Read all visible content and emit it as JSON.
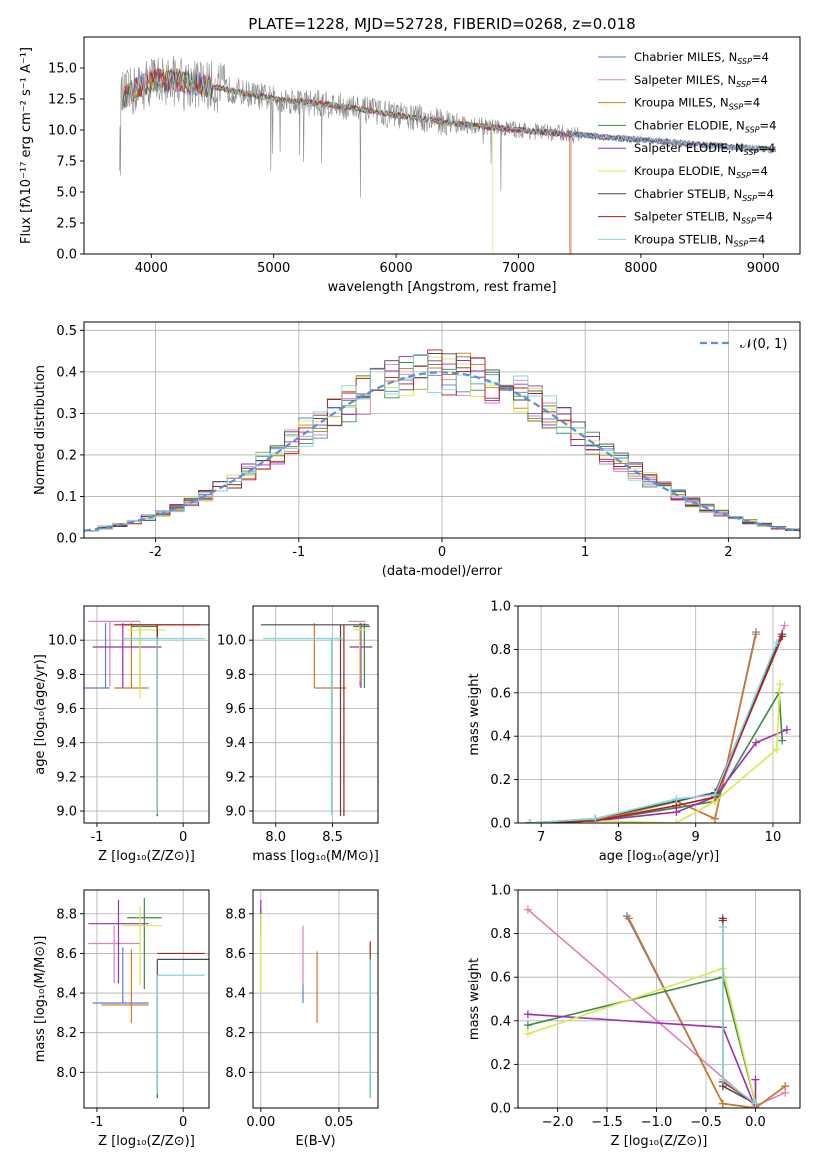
{
  "figure_title": "PLATE=1228, MJD=52728, FIBERID=0268, z=0.018",
  "colors": {
    "Chabrier MILES": "#5b7fd6",
    "Salpeter MILES": "#e27fbf",
    "Kroupa MILES": "#d4781f",
    "Chabrier ELODIE": "#3f8a48",
    "Salpeter ELODIE": "#9a2fb0",
    "Kroupa ELODIE": "#d8ea4a",
    "Chabrier STELIB": "#4a4a4a",
    "Salpeter STELIB": "#b71c1c",
    "Kroupa STELIB": "#7fd8da",
    "normal_curve": "#5b8fd6"
  },
  "chart_data": [
    {
      "id": "spectrum",
      "type": "line",
      "title": "PLATE=1228, MJD=52728, FIBERID=0268, z=0.018",
      "xlabel": "wavelength [Angstrom, rest frame]",
      "ylabel": "Flux [fλ10⁻¹⁷ erg cm⁻² s⁻¹ A⁻¹]",
      "xlim": [
        3450,
        9300
      ],
      "ylim": [
        0,
        17.5
      ],
      "xticks": [
        4000,
        5000,
        6000,
        7000,
        8000,
        9000
      ],
      "yticks": [
        0.0,
        2.5,
        5.0,
        7.5,
        10.0,
        12.5,
        15.0
      ],
      "ytick_labels": [
        "0.0",
        "2.5",
        "5.0",
        "7.5",
        "10.0",
        "12.5",
        "15.0"
      ],
      "legend_position": "top-right",
      "legend": [
        {
          "name": "Chabrier MILES",
          "suffix": "4"
        },
        {
          "name": "Salpeter MILES",
          "suffix": "4"
        },
        {
          "name": "Kroupa MILES",
          "suffix": "4"
        },
        {
          "name": "Chabrier ELODIE",
          "suffix": "4"
        },
        {
          "name": "Salpeter ELODIE",
          "suffix": "4"
        },
        {
          "name": "Kroupa ELODIE",
          "suffix": "4"
        },
        {
          "name": "Chabrier STELIB",
          "suffix": "4"
        },
        {
          "name": "Salpeter STELIB",
          "suffix": "4"
        },
        {
          "name": "Kroupa STELIB",
          "suffix": "4"
        }
      ],
      "data_trend": {
        "x": [
          3750,
          4000,
          4200,
          4500,
          5000,
          5500,
          6000,
          6500,
          7000,
          7500,
          8000,
          8500,
          9100
        ],
        "y": [
          12.5,
          14.0,
          14.0,
          13.5,
          12.5,
          12.0,
          11.2,
          10.5,
          10.0,
          9.6,
          9.2,
          8.8,
          8.4
        ]
      },
      "model_cutoffs": [
        {
          "series": "Kroupa ELODIE",
          "end_x": 6790
        },
        {
          "series": "Salpeter STELIB",
          "end_x": 7420
        },
        {
          "series": "Kroupa MILES",
          "end_x": 7430
        }
      ]
    },
    {
      "id": "residuals",
      "type": "histogram",
      "xlabel": "(data-model)/error",
      "ylabel": "Normed distribution",
      "xlim": [
        -2.5,
        2.5
      ],
      "ylim": [
        0,
        0.52
      ],
      "xticks": [
        -2,
        -1,
        0,
        1,
        2
      ],
      "yticks": [
        0.0,
        0.1,
        0.2,
        0.3,
        0.4,
        0.5
      ],
      "ytick_labels": [
        "0.0",
        "0.1",
        "0.2",
        "0.3",
        "0.4",
        "0.5"
      ],
      "legend": [
        {
          "name": "𝒩(0, 1)",
          "style": "dashed"
        }
      ],
      "legend_position": "top-right",
      "bin_width": 0.1,
      "reference_curve": "normal(0,1)"
    },
    {
      "id": "age_vs_Z",
      "type": "errorbar",
      "xlabel": "Z [log₁₀(Z/Z⊙)]",
      "ylabel": "age  [log₁₀(age/yr)]",
      "xlim": [
        -1.15,
        0.3
      ],
      "ylim": [
        8.93,
        10.2
      ],
      "xticks": [
        -1,
        0
      ],
      "yticks": [
        9.0,
        9.2,
        9.4,
        9.6,
        9.8,
        10.0
      ],
      "ytick_labels": [
        "9.0",
        "9.2",
        "9.4",
        "9.6",
        "9.8",
        "10.0"
      ],
      "points": [
        {
          "series": "Chabrier MILES",
          "x": -0.9,
          "xerr": [
            0.6,
            0.05
          ],
          "y": 9.72,
          "yerr": [
            0.0,
            0.38
          ]
        },
        {
          "series": "Salpeter MILES",
          "x": -0.85,
          "xerr": [
            0.25,
            0.35
          ],
          "y": 10.11,
          "yerr": [
            0.38,
            0.0
          ]
        },
        {
          "series": "Kroupa MILES",
          "x": -0.6,
          "xerr": [
            0.2,
            0.2
          ],
          "y": 9.72,
          "yerr": [
            0.0,
            0.38
          ]
        },
        {
          "series": "Chabrier ELODIE",
          "x": -0.5,
          "xerr": [
            0.1,
            0.2
          ],
          "y": 10.08,
          "yerr": [
            0.36,
            0.02
          ]
        },
        {
          "series": "Salpeter ELODIE",
          "x": -0.7,
          "xerr": [
            0.35,
            0.45
          ],
          "y": 9.96,
          "yerr": [
            0.24,
            0.14
          ]
        },
        {
          "series": "Kroupa ELODIE",
          "x": -0.5,
          "xerr": [
            0.15,
            0.3
          ],
          "y": 10.06,
          "yerr": [
            0.4,
            0.05
          ]
        },
        {
          "series": "Chabrier STELIB",
          "x": -0.3,
          "xerr": [
            0.4,
            0.6
          ],
          "y": 10.09,
          "yerr": [
            1.12,
            0.0
          ]
        },
        {
          "series": "Salpeter STELIB",
          "x": -0.3,
          "xerr": [
            0.5,
            0.5
          ],
          "y": 10.09,
          "yerr": [
            1.12,
            0.0
          ]
        },
        {
          "series": "Kroupa STELIB",
          "x": -0.3,
          "xerr": [
            0.4,
            0.55
          ],
          "y": 10.01,
          "yerr": [
            1.03,
            0.0
          ]
        }
      ]
    },
    {
      "id": "age_vs_mass",
      "type": "errorbar",
      "xlabel": "mass [log₁₀(M/M⊙)]",
      "ylabel": "",
      "xlim": [
        7.8,
        8.9
      ],
      "ylim": [
        8.93,
        10.2
      ],
      "xticks": [
        8.0,
        8.5
      ],
      "xtick_labels": [
        "8.0",
        "8.5"
      ],
      "yticks": [
        9.0,
        9.2,
        9.4,
        9.6,
        9.8,
        10.0
      ],
      "ytick_labels": [
        "9.0",
        "9.2",
        "9.4",
        "9.6",
        "9.8",
        "10.0"
      ],
      "points": [
        {
          "series": "Chabrier MILES",
          "x": 8.35,
          "xerr": [
            0.0,
            0.0
          ],
          "y": 9.72,
          "yerr": [
            0.0,
            0.0
          ]
        },
        {
          "series": "Salpeter MILES",
          "x": 8.74,
          "xerr": [
            0.1,
            0.05
          ],
          "y": 10.11,
          "yerr": [
            0.38,
            0.0
          ]
        },
        {
          "series": "Kroupa MILES",
          "x": 8.34,
          "xerr": [
            0.0,
            0.28
          ],
          "y": 9.72,
          "yerr": [
            0.0,
            0.38
          ]
        },
        {
          "series": "Chabrier ELODIE",
          "x": 8.78,
          "xerr": [
            0.1,
            0.05
          ],
          "y": 10.08,
          "yerr": [
            0.36,
            0.02
          ]
        },
        {
          "series": "Salpeter ELODIE",
          "x": 8.75,
          "xerr": [
            0.1,
            0.1
          ],
          "y": 9.96,
          "yerr": [
            0.24,
            0.14
          ]
        },
        {
          "series": "Kroupa ELODIE",
          "x": 8.74,
          "xerr": [
            0.05,
            0.05
          ],
          "y": 10.06,
          "yerr": [
            0.3,
            0.05
          ]
        },
        {
          "series": "Chabrier STELIB",
          "x": 8.57,
          "xerr": [
            0.7,
            0.25
          ],
          "y": 10.09,
          "yerr": [
            1.12,
            0.0
          ]
        },
        {
          "series": "Salpeter STELIB",
          "x": 8.6,
          "xerr": [
            0.0,
            0.0
          ],
          "y": 10.09,
          "yerr": [
            1.12,
            0.0
          ]
        },
        {
          "series": "Kroupa STELIB",
          "x": 8.49,
          "xerr": [
            0.6,
            0.1
          ],
          "y": 10.01,
          "yerr": [
            1.03,
            0.0
          ]
        }
      ]
    },
    {
      "id": "weight_vs_age",
      "type": "line",
      "xlabel": "age  [log₁₀(age/yr)]",
      "ylabel": "mass weight",
      "xlim": [
        6.7,
        10.35
      ],
      "ylim": [
        0,
        1.0
      ],
      "xticks": [
        7,
        8,
        9,
        10
      ],
      "yticks": [
        0.0,
        0.2,
        0.4,
        0.6,
        0.8,
        1.0
      ],
      "ytick_labels": [
        "0.0",
        "0.2",
        "0.4",
        "0.6",
        "0.8",
        "1.0"
      ],
      "series": [
        {
          "name": "Chabrier MILES",
          "x": [
            6.85,
            7.7,
            8.75,
            9.25,
            9.78
          ],
          "y": [
            0.0,
            0.01,
            0.1,
            0.02,
            0.88
          ]
        },
        {
          "name": "Salpeter MILES",
          "x": [
            6.85,
            7.7,
            8.75,
            9.25,
            10.15
          ],
          "y": [
            0.0,
            0.01,
            0.07,
            0.1,
            0.91
          ]
        },
        {
          "name": "Kroupa MILES",
          "x": [
            6.85,
            7.7,
            8.75,
            9.25,
            9.78
          ],
          "y": [
            0.0,
            0.01,
            0.1,
            0.02,
            0.87
          ]
        },
        {
          "name": "Chabrier ELODIE",
          "x": [
            6.85,
            7.7,
            8.75,
            9.25,
            10.08,
            10.12
          ],
          "y": [
            0.0,
            0.01,
            0.07,
            0.1,
            0.6,
            0.38
          ]
        },
        {
          "name": "Salpeter ELODIE",
          "x": [
            6.85,
            7.7,
            8.75,
            9.25,
            9.78,
            10.18
          ],
          "y": [
            0.0,
            0.01,
            0.05,
            0.12,
            0.37,
            0.43
          ]
        },
        {
          "name": "Kroupa ELODIE",
          "x": [
            6.85,
            7.7,
            8.75,
            9.25,
            10.05,
            10.09
          ],
          "y": [
            0.0,
            0.01,
            0.0,
            0.1,
            0.34,
            0.64
          ]
        },
        {
          "name": "Chabrier STELIB",
          "x": [
            6.85,
            7.7,
            8.75,
            9.25,
            10.12
          ],
          "y": [
            0.0,
            0.02,
            0.1,
            0.14,
            0.87
          ]
        },
        {
          "name": "Salpeter STELIB",
          "x": [
            6.85,
            7.7,
            8.75,
            9.25,
            10.12
          ],
          "y": [
            0.0,
            0.01,
            0.08,
            0.12,
            0.86
          ]
        },
        {
          "name": "Kroupa STELIB",
          "x": [
            6.85,
            7.7,
            8.75,
            9.25,
            10.05
          ],
          "y": [
            0.0,
            0.02,
            0.11,
            0.13,
            0.83
          ]
        }
      ]
    },
    {
      "id": "mass_vs_Z",
      "type": "errorbar",
      "xlabel": "Z [log₁₀(Z/Z⊙)]",
      "ylabel": "mass [log₁₀(M/M⊙)]",
      "xlim": [
        -1.15,
        0.3
      ],
      "ylim": [
        7.82,
        8.92
      ],
      "xticks": [
        -1,
        0
      ],
      "yticks": [
        8.0,
        8.2,
        8.4,
        8.6,
        8.8
      ],
      "ytick_labels": [
        "8.0",
        "8.2",
        "8.4",
        "8.6",
        "8.8"
      ],
      "points": [
        {
          "series": "Chabrier MILES",
          "x": -0.7,
          "xerr": [
            0.35,
            0.3
          ],
          "y": 8.35,
          "yerr": [
            0.0,
            0.28
          ]
        },
        {
          "series": "Salpeter MILES",
          "x": -0.8,
          "xerr": [
            0.3,
            0.3
          ],
          "y": 8.65,
          "yerr": [
            0.2,
            0.09
          ]
        },
        {
          "series": "Kroupa MILES",
          "x": -0.6,
          "xerr": [
            0.35,
            0.2
          ],
          "y": 8.34,
          "yerr": [
            0.09,
            0.28
          ]
        },
        {
          "series": "Chabrier ELODIE",
          "x": -0.45,
          "xerr": [
            0.2,
            0.2
          ],
          "y": 8.78,
          "yerr": [
            0.36,
            0.1
          ]
        },
        {
          "series": "Salpeter ELODIE",
          "x": -0.75,
          "xerr": [
            0.35,
            0.35
          ],
          "y": 8.75,
          "yerr": [
            0.3,
            0.12
          ]
        },
        {
          "series": "Kroupa ELODIE",
          "x": -0.5,
          "xerr": [
            0.2,
            0.25
          ],
          "y": 8.74,
          "yerr": [
            0.3,
            0.1
          ]
        },
        {
          "series": "Chabrier STELIB",
          "x": -0.3,
          "xerr": [
            0.0,
            0.6
          ],
          "y": 8.57,
          "yerr": [
            0.7,
            0.0
          ]
        },
        {
          "series": "Salpeter STELIB",
          "x": -0.3,
          "xerr": [
            0.0,
            0.55
          ],
          "y": 8.6,
          "yerr": [
            0.0,
            0.0
          ]
        },
        {
          "series": "Kroupa STELIB",
          "x": -0.3,
          "xerr": [
            0.0,
            0.55
          ],
          "y": 8.49,
          "yerr": [
            0.6,
            0.0
          ]
        }
      ]
    },
    {
      "id": "mass_vs_ebv",
      "type": "errorbar",
      "xlabel": "E(B-V)",
      "ylabel": "",
      "xlim": [
        -0.005,
        0.075
      ],
      "ylim": [
        7.82,
        8.92
      ],
      "xticks": [
        0.0,
        0.05
      ],
      "xtick_labels": [
        "0.00",
        "0.05"
      ],
      "yticks": [
        8.0,
        8.2,
        8.4,
        8.6,
        8.8
      ],
      "ytick_labels": [
        "8.0",
        "8.2",
        "8.4",
        "8.6",
        "8.8"
      ],
      "points": [
        {
          "series": "Chabrier MILES",
          "x": 0.027,
          "y": 8.35,
          "yerr": [
            0.0,
            0.1
          ]
        },
        {
          "series": "Salpeter MILES",
          "x": 0.027,
          "y": 8.64,
          "yerr": [
            0.2,
            0.1
          ]
        },
        {
          "series": "Kroupa MILES",
          "x": 0.036,
          "y": 8.43,
          "yerr": [
            0.18,
            0.18
          ]
        },
        {
          "series": "Chabrier ELODIE",
          "x": 0.0,
          "y": 8.78,
          "yerr": [
            0.1,
            0.05
          ]
        },
        {
          "series": "Salpeter ELODIE",
          "x": 0.0,
          "y": 8.84,
          "yerr": [
            0.04,
            0.03
          ]
        },
        {
          "series": "Kroupa ELODIE",
          "x": 0.0,
          "y": 8.6,
          "yerr": [
            0.2,
            0.2
          ]
        },
        {
          "series": "Chabrier STELIB",
          "x": 0.07,
          "y": 8.3,
          "yerr": [
            0.43,
            0.3
          ]
        },
        {
          "series": "Salpeter STELIB",
          "x": 0.07,
          "y": 8.6,
          "yerr": [
            0.0,
            0.06
          ]
        },
        {
          "series": "Kroupa STELIB",
          "x": 0.07,
          "y": 8.22,
          "yerr": [
            0.35,
            0.35
          ]
        }
      ]
    },
    {
      "id": "weight_vs_Z",
      "type": "line",
      "xlabel": "Z [log₁₀(Z/Z⊙)]",
      "ylabel": "mass weight",
      "xlim": [
        -2.4,
        0.45
      ],
      "ylim": [
        0,
        1.0
      ],
      "xticks": [
        -2.0,
        -1.5,
        -1.0,
        -0.5,
        0.0
      ],
      "xtick_labels": [
        "−2.0",
        "−1.5",
        "−1.0",
        "−0.5",
        "0.0"
      ],
      "yticks": [
        0.0,
        0.2,
        0.4,
        0.6,
        0.8,
        1.0
      ],
      "ytick_labels": [
        "0.0",
        "0.2",
        "0.4",
        "0.6",
        "0.8",
        "1.0"
      ],
      "series": [
        {
          "name": "Chabrier MILES",
          "x": [
            -1.3,
            -0.33,
            0.0,
            0.3
          ],
          "y": [
            0.88,
            0.02,
            0.0,
            0.1
          ]
        },
        {
          "name": "Salpeter MILES",
          "x": [
            -2.3,
            0.0,
            0.3
          ],
          "y": [
            0.91,
            0.01,
            0.07
          ]
        },
        {
          "name": "Kroupa MILES",
          "x": [
            -1.28,
            -0.33,
            0.0,
            0.3
          ],
          "y": [
            0.87,
            0.02,
            0.0,
            0.1
          ]
        },
        {
          "name": "Chabrier ELODIE",
          "x": [
            -2.3,
            -0.33,
            0.0
          ],
          "y": [
            0.38,
            0.6,
            0.02
          ]
        },
        {
          "name": "Salpeter ELODIE",
          "x": [
            -2.3,
            -0.33,
            0.0,
            0.0
          ],
          "y": [
            0.43,
            0.37,
            0.0,
            0.13
          ]
        },
        {
          "name": "Kroupa ELODIE",
          "x": [
            -2.3,
            -0.33,
            0.0
          ],
          "y": [
            0.34,
            0.64,
            0.02
          ]
        },
        {
          "name": "Chabrier STELIB",
          "x": [
            -0.33,
            -0.33,
            0.0
          ],
          "y": [
            0.87,
            0.1,
            0.02
          ]
        },
        {
          "name": "Salpeter STELIB",
          "x": [
            -0.33,
            -0.33,
            0.0
          ],
          "y": [
            0.86,
            0.12,
            0.02
          ]
        },
        {
          "name": "Kroupa STELIB",
          "x": [
            -0.33,
            -0.33,
            0.0
          ],
          "y": [
            0.83,
            0.13,
            0.02
          ]
        }
      ]
    }
  ]
}
